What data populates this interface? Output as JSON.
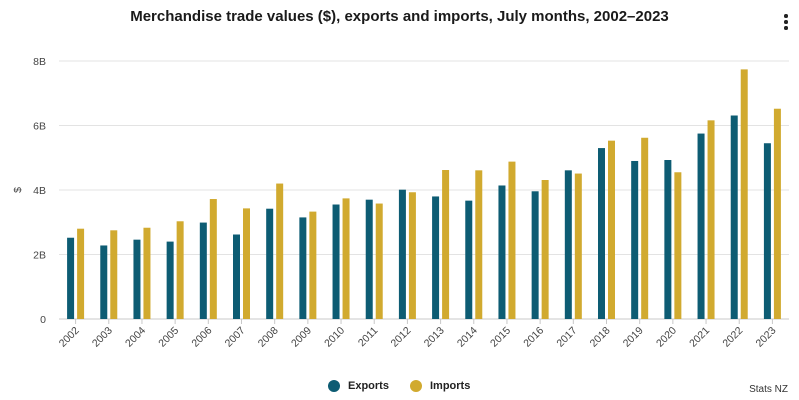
{
  "chart_data": {
    "type": "bar",
    "title": "Merchandise trade values ($), exports and imports, July months, 2002–2023",
    "xlabel": "",
    "ylabel": "$",
    "ylim": [
      0,
      8000000000
    ],
    "yticks": [
      {
        "value": 0,
        "label": "0"
      },
      {
        "value": 2000000000,
        "label": "2B"
      },
      {
        "value": 4000000000,
        "label": "4B"
      },
      {
        "value": 6000000000,
        "label": "6B"
      },
      {
        "value": 8000000000,
        "label": "8B"
      }
    ],
    "categories": [
      "2002",
      "2003",
      "2004",
      "2005",
      "2006",
      "2007",
      "2008",
      "2009",
      "2010",
      "2011",
      "2012",
      "2013",
      "2014",
      "2015",
      "2016",
      "2017",
      "2018",
      "2019",
      "2020",
      "2021",
      "2022",
      "2023"
    ],
    "series": [
      {
        "name": "Exports",
        "color": "#0d5c73",
        "values": [
          2520000000.0,
          2280000000.0,
          2460000000.0,
          2400000000.0,
          2990000000.0,
          2620000000.0,
          3420000000.0,
          3150000000.0,
          3550000000.0,
          3700000000.0,
          4010000000.0,
          3800000000.0,
          3670000000.0,
          4140000000.0,
          3960000000.0,
          4610000000.0,
          5300000000.0,
          4900000000.0,
          4930000000.0,
          5750000000.0,
          6310000000.0,
          5450000000.0
        ]
      },
      {
        "name": "Imports",
        "color": "#d1aa2f",
        "values": [
          2800000000.0,
          2750000000.0,
          2830000000.0,
          3030000000.0,
          3720000000.0,
          3430000000.0,
          4200000000.0,
          3330000000.0,
          3740000000.0,
          3580000000.0,
          3930000000.0,
          4620000000.0,
          4610000000.0,
          4880000000.0,
          4310000000.0,
          4510000000.0,
          5530000000.0,
          5620000000.0,
          4550000000.0,
          6160000000.0,
          7740000000.0,
          6520000000.0
        ]
      }
    ],
    "grid": true,
    "legend": "bottom-center"
  },
  "source": "Stats NZ",
  "menu_icon": "more-vertical-icon"
}
